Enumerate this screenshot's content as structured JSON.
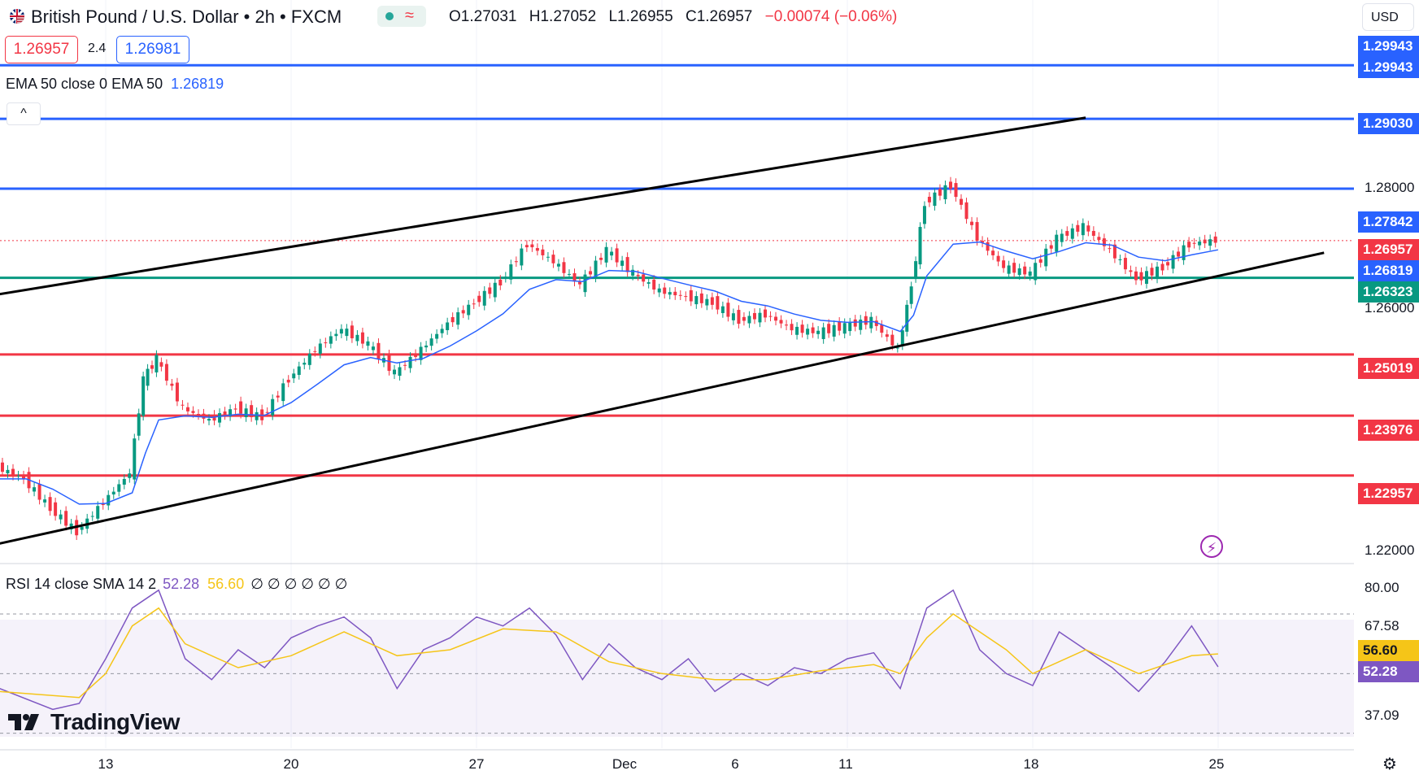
{
  "header": {
    "symbol_title": "British Pound / U.S. Dollar • 2h • FXCM",
    "status_wave": "≈",
    "ohlc": {
      "open": "O1.27031",
      "high": "H1.27052",
      "low": "L1.26955",
      "close": "C1.26957",
      "change": "−0.00074 (−0.06%)"
    }
  },
  "quote": {
    "bid": "1.26957",
    "spread": "2.4",
    "ask": "1.26981"
  },
  "ema_legend": {
    "label": "EMA 50 close 0 EMA 50",
    "value": "1.26819"
  },
  "collapse_label": "^",
  "currency": "USD",
  "price_axis": {
    "ticks": [
      "1.28000",
      "1.26000",
      "1.22000"
    ],
    "labels": [
      {
        "value": "1.29943",
        "color": "#2962ff"
      },
      {
        "value": "1.29943",
        "color": "#2962ff"
      },
      {
        "value": "1.29030",
        "color": "#2962ff"
      },
      {
        "value": "1.27842",
        "color": "#2962ff"
      },
      {
        "value": "1.26957",
        "color": "#f23645"
      },
      {
        "value": "1.26819",
        "color": "#2962ff"
      },
      {
        "value": "1.26323",
        "color": "#089981"
      },
      {
        "value": "1.25019",
        "color": "#f23645"
      },
      {
        "value": "1.23976",
        "color": "#f23645"
      },
      {
        "value": "1.22957",
        "color": "#f23645"
      }
    ]
  },
  "rsi": {
    "legend": "RSI 14 close SMA 14 2",
    "rsi_value": "52.28",
    "sma_value": "56.60",
    "nulls": "∅ ∅ ∅ ∅ ∅ ∅",
    "axis_ticks": [
      "80.00",
      "67.58",
      "37.09"
    ],
    "labels": [
      {
        "value": "56.60",
        "color": "#f5c518"
      },
      {
        "value": "52.28",
        "color": "#7e57c2"
      }
    ]
  },
  "time_axis": [
    "13",
    "20",
    "27",
    "Dec",
    "6",
    "11",
    "18",
    "25"
  ],
  "logo": "TradingView",
  "icons": {
    "alert": "lightning-icon",
    "settings": "gear-icon",
    "flag": "uk-us-flag-icon"
  },
  "colors": {
    "up": "#089981",
    "down": "#f23645",
    "ema": "#2962ff",
    "rsi": "#7e57c2",
    "rsi_sma": "#f5c518"
  },
  "chart_data": {
    "type": "candlestick",
    "title": "British Pound / U.S. Dollar • 2h • FXCM",
    "ylim": [
      1.215,
      1.305
    ],
    "ema_period": 50,
    "horizontal_levels": [
      {
        "price": 1.29943,
        "color": "#2962ff"
      },
      {
        "price": 1.2903,
        "color": "#2962ff"
      },
      {
        "price": 1.27842,
        "color": "#2962ff"
      },
      {
        "price": 1.26323,
        "color": "#089981"
      },
      {
        "price": 1.25019,
        "color": "#f23645"
      },
      {
        "price": 1.23976,
        "color": "#f23645"
      },
      {
        "price": 1.22957,
        "color": "#f23645"
      }
    ],
    "last_price": 1.26957,
    "trendlines": [
      {
        "from": [
          "Nov 7",
          1.259
        ],
        "to": [
          "Dec 20",
          1.2905
        ]
      },
      {
        "from": [
          "Nov 9",
          1.218
        ],
        "to": [
          "Dec 29",
          1.2675
        ]
      }
    ],
    "price_path": [
      [
        "Nov 9",
        1.231
      ],
      [
        "Nov 10",
        1.229
      ],
      [
        "Nov 11",
        1.224
      ],
      [
        "Nov 12",
        1.22
      ],
      [
        "Nov 13",
        1.225
      ],
      [
        "Nov 14",
        1.23
      ],
      [
        "Nov 14b",
        1.246
      ],
      [
        "Nov 15",
        1.2495
      ],
      [
        "Nov 16",
        1.241
      ],
      [
        "Nov 17",
        1.239
      ],
      [
        "Nov 18",
        1.241
      ],
      [
        "Nov 19",
        1.2395
      ],
      [
        "Nov 20",
        1.246
      ],
      [
        "Nov 21",
        1.251
      ],
      [
        "Nov 22",
        1.2545
      ],
      [
        "Nov 23",
        1.252
      ],
      [
        "Nov 24",
        1.247
      ],
      [
        "Nov 25",
        1.251
      ],
      [
        "Nov 26",
        1.2555
      ],
      [
        "Nov 27",
        1.259
      ],
      [
        "Nov 28",
        1.2625
      ],
      [
        "Nov 29",
        1.269
      ],
      [
        "Nov 30",
        1.266
      ],
      [
        "Dec 1",
        1.262
      ],
      [
        "Dec 2",
        1.268
      ],
      [
        "Dec 3",
        1.264
      ],
      [
        "Dec 4",
        1.261
      ],
      [
        "Dec 5",
        1.26
      ],
      [
        "Dec 6",
        1.259
      ],
      [
        "Dec 7",
        1.256
      ],
      [
        "Dec 8",
        1.257
      ],
      [
        "Dec 9",
        1.2545
      ],
      [
        "Dec 10",
        1.254
      ],
      [
        "Dec 11",
        1.255
      ],
      [
        "Dec 12",
        1.256
      ],
      [
        "Dec 13",
        1.251
      ],
      [
        "Dec 13b",
        1.262
      ],
      [
        "Dec 14",
        1.276
      ],
      [
        "Dec 15",
        1.279
      ],
      [
        "Dec 16",
        1.27
      ],
      [
        "Dec 17",
        1.265
      ],
      [
        "Dec 18",
        1.264
      ],
      [
        "Dec 19",
        1.27
      ],
      [
        "Dec 20",
        1.272
      ],
      [
        "Dec 21",
        1.268
      ],
      [
        "Dec 22",
        1.263
      ],
      [
        "Dec 23",
        1.265
      ],
      [
        "Dec 24",
        1.269
      ],
      [
        "Dec 25",
        1.2696
      ]
    ],
    "rsi_path": [
      [
        "Nov 9",
        45
      ],
      [
        "Nov 11",
        38
      ],
      [
        "Nov 12",
        40
      ],
      [
        "Nov 13",
        55
      ],
      [
        "Nov 14",
        72
      ],
      [
        "Nov 15",
        78
      ],
      [
        "Nov 16",
        55
      ],
      [
        "Nov 17",
        48
      ],
      [
        "Nov 18",
        58
      ],
      [
        "Nov 19",
        52
      ],
      [
        "Nov 20",
        62
      ],
      [
        "Nov 21",
        66
      ],
      [
        "Nov 22",
        69
      ],
      [
        "Nov 23",
        62
      ],
      [
        "Nov 24",
        45
      ],
      [
        "Nov 25",
        58
      ],
      [
        "Nov 26",
        62
      ],
      [
        "Nov 27",
        69
      ],
      [
        "Nov 28",
        66
      ],
      [
        "Nov 29",
        72
      ],
      [
        "Nov 30",
        63
      ],
      [
        "Dec 1",
        48
      ],
      [
        "Dec 2",
        60
      ],
      [
        "Dec 3",
        52
      ],
      [
        "Dec 4",
        48
      ],
      [
        "Dec 5",
        55
      ],
      [
        "Dec 6",
        44
      ],
      [
        "Dec 7",
        50
      ],
      [
        "Dec 8",
        46
      ],
      [
        "Dec 9",
        52
      ],
      [
        "Dec 10",
        50
      ],
      [
        "Dec 11",
        55
      ],
      [
        "Dec 12",
        57
      ],
      [
        "Dec 13",
        45
      ],
      [
        "Dec 14",
        72
      ],
      [
        "Dec 15",
        78
      ],
      [
        "Dec 16",
        58
      ],
      [
        "Dec 17",
        50
      ],
      [
        "Dec 18",
        46
      ],
      [
        "Dec 19",
        64
      ],
      [
        "Dec 20",
        58
      ],
      [
        "Dec 21",
        52
      ],
      [
        "Dec 22",
        44
      ],
      [
        "Dec 23",
        54
      ],
      [
        "Dec 24",
        66
      ],
      [
        "Dec 25",
        52.28
      ]
    ],
    "rsi_sma_path": [
      [
        "Nov 9",
        44
      ],
      [
        "Nov 12",
        42
      ],
      [
        "Nov 13",
        50
      ],
      [
        "Nov 14",
        66
      ],
      [
        "Nov 15",
        72
      ],
      [
        "Nov 16",
        60
      ],
      [
        "Nov 18",
        52
      ],
      [
        "Nov 20",
        56
      ],
      [
        "Nov 22",
        64
      ],
      [
        "Nov 24",
        56
      ],
      [
        "Nov 26",
        58
      ],
      [
        "Nov 28",
        65
      ],
      [
        "Nov 30",
        64
      ],
      [
        "Dec 2",
        54
      ],
      [
        "Dec 4",
        50
      ],
      [
        "Dec 6",
        48
      ],
      [
        "Dec 8",
        48
      ],
      [
        "Dec 10",
        51
      ],
      [
        "Dec 12",
        53
      ],
      [
        "Dec 13",
        50
      ],
      [
        "Dec 14",
        62
      ],
      [
        "Dec 15",
        70
      ],
      [
        "Dec 17",
        58
      ],
      [
        "Dec 18",
        50
      ],
      [
        "Dec 20",
        58
      ],
      [
        "Dec 22",
        50
      ],
      [
        "Dec 24",
        56
      ],
      [
        "Dec 25",
        56.6
      ]
    ],
    "rsi_levels": [
      70,
      50,
      30
    ]
  }
}
